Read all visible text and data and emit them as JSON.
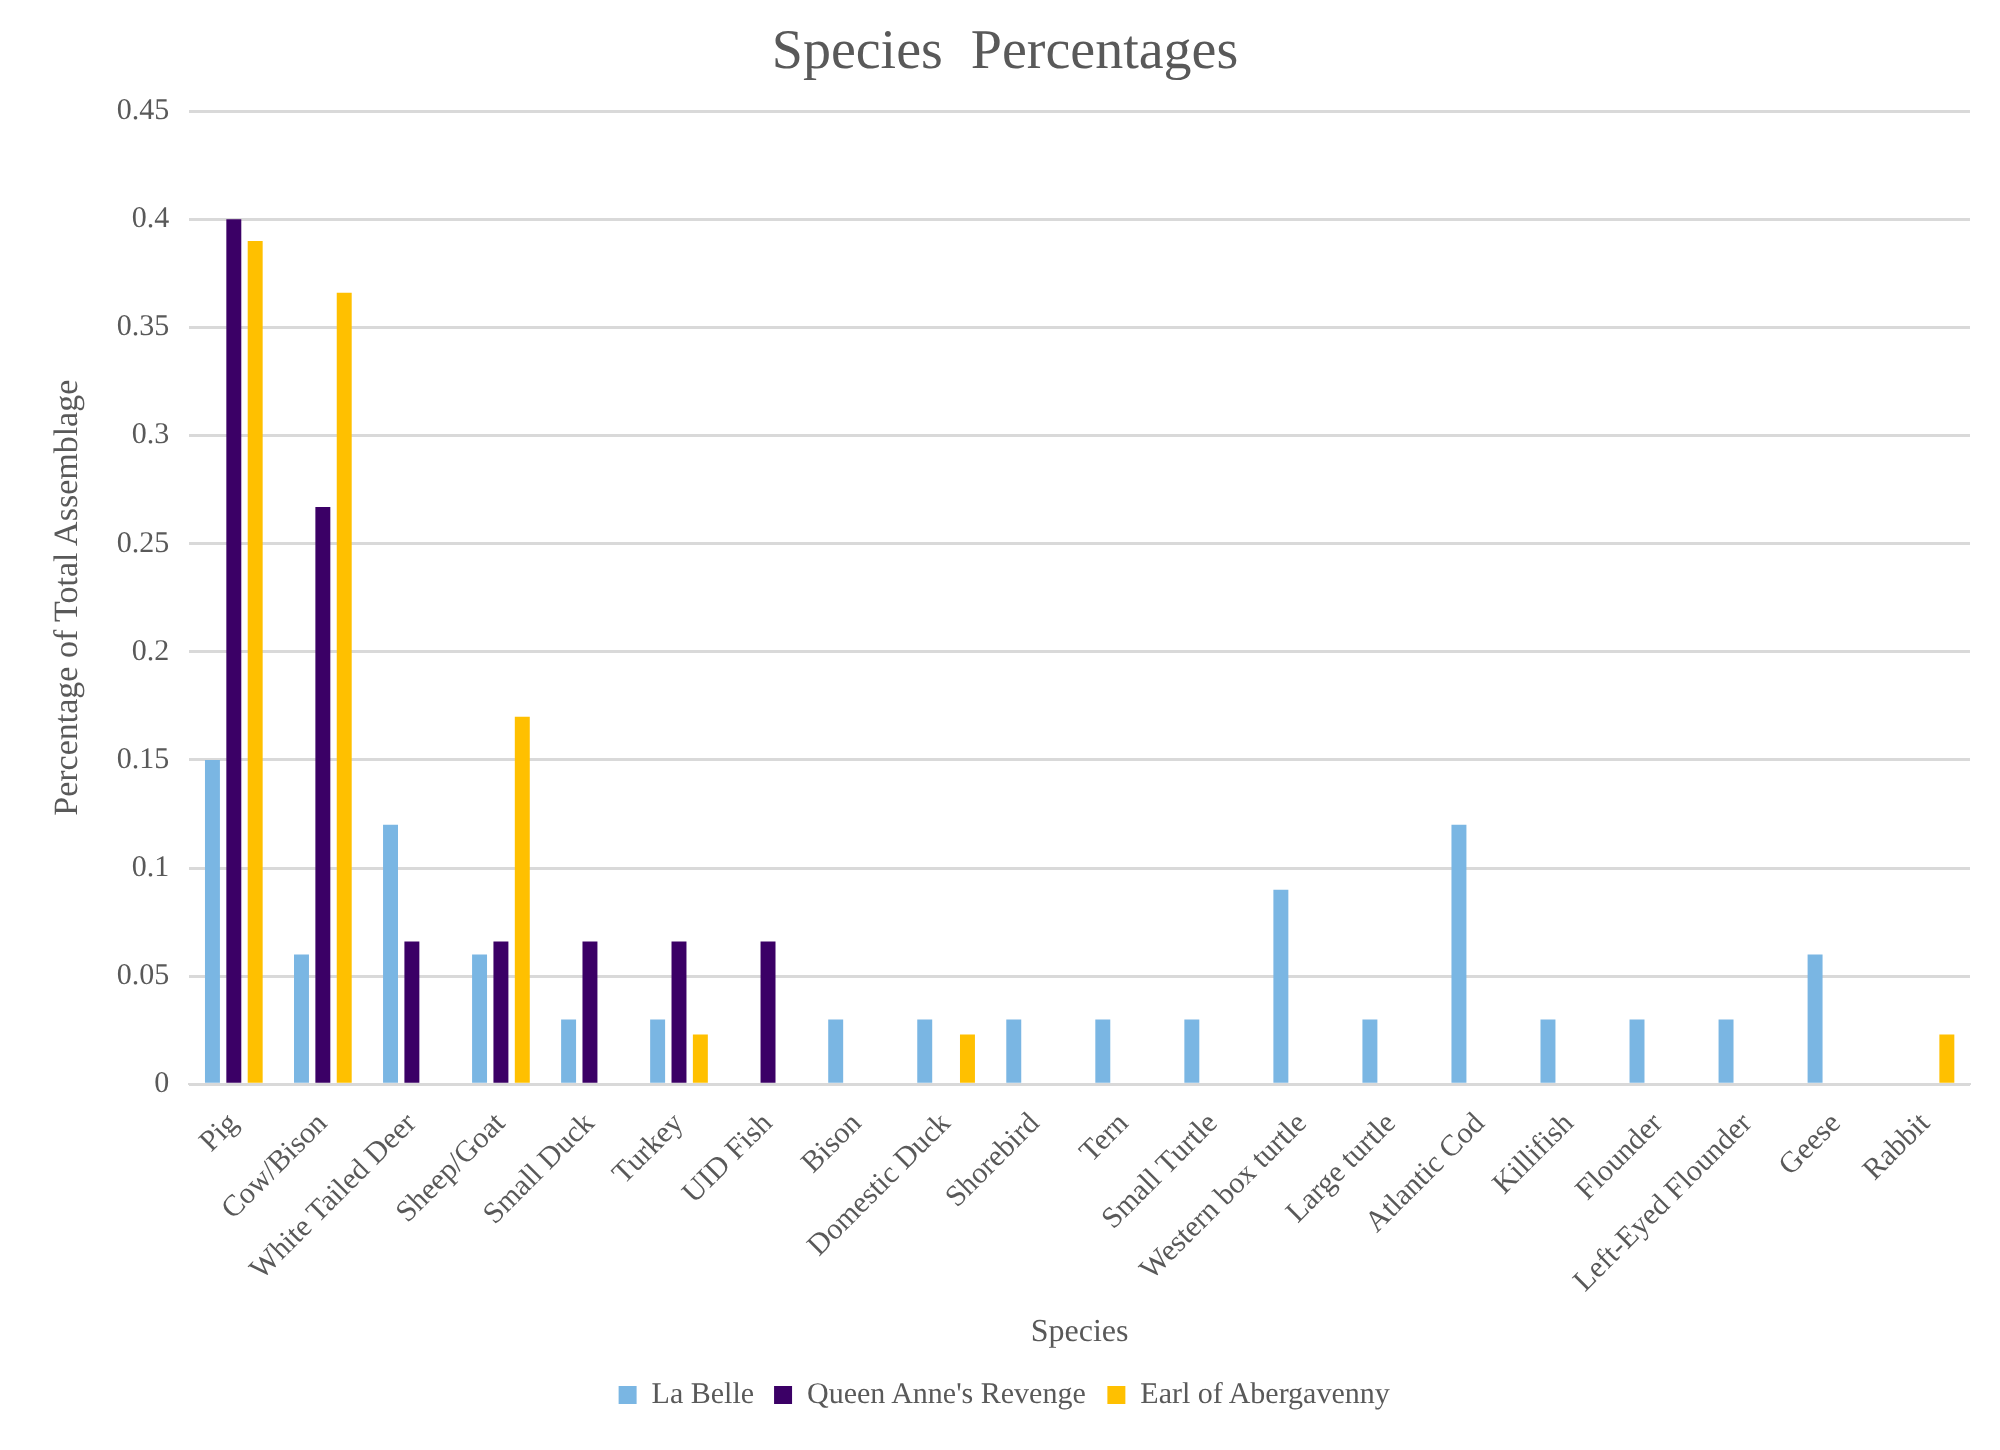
{
  "chart_data": {
    "type": "bar",
    "title": "Species  Percentages",
    "xlabel": "Species",
    "ylabel": "Percentage of Total Assemblage",
    "categories": [
      "Pig",
      "Cow/Bison",
      "White Tailed Deer",
      "Sheep/Goat",
      "Small Duck",
      "Turkey",
      "UID Fish",
      "Bison",
      "Domestic Duck",
      "Shorebird",
      "Tern",
      "Small Turtle",
      "Western box turtle",
      "Large turtle",
      "Atlantic Cod",
      "Killifish",
      "Flounder",
      "Left-Eyed Flounder",
      "Geese",
      "Rabbit"
    ],
    "series": [
      {
        "name": "La Belle",
        "color": "#7ab6e3",
        "values": [
          0.15,
          0.06,
          0.12,
          0.06,
          0.03,
          0.03,
          null,
          0.03,
          0.03,
          0.03,
          0.03,
          0.03,
          0.09,
          0.03,
          0.12,
          0.03,
          0.03,
          0.03,
          0.06,
          null
        ]
      },
      {
        "name": "Queen Anne's Revenge",
        "color": "#3b0066",
        "values": [
          0.4,
          0.267,
          0.066,
          0.066,
          0.066,
          0.066,
          0.066,
          null,
          null,
          null,
          null,
          null,
          null,
          null,
          null,
          null,
          null,
          null,
          null,
          null
        ]
      },
      {
        "name": "Earl of Abergavenny",
        "color": "#ffc000",
        "values": [
          0.39,
          0.366,
          null,
          0.17,
          null,
          0.023,
          null,
          null,
          0.023,
          null,
          null,
          null,
          null,
          null,
          null,
          null,
          null,
          null,
          null,
          0.023
        ]
      }
    ],
    "ylim": [
      0,
      0.45
    ],
    "yticks": [
      0,
      0.05,
      0.1,
      0.15,
      0.2,
      0.25,
      0.3,
      0.35,
      0.4,
      0.45
    ],
    "grid": "y",
    "legend": "bottom"
  }
}
